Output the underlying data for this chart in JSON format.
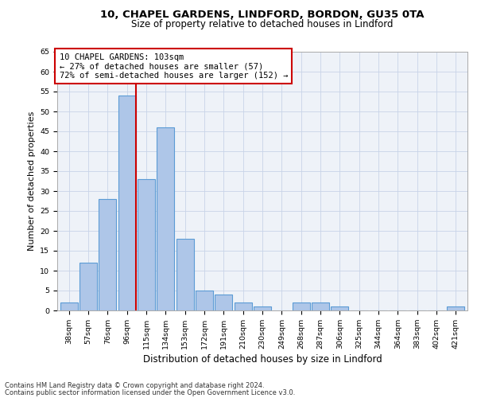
{
  "title_line1": "10, CHAPEL GARDENS, LINDFORD, BORDON, GU35 0TA",
  "title_line2": "Size of property relative to detached houses in Lindford",
  "xlabel": "Distribution of detached houses by size in Lindford",
  "ylabel": "Number of detached properties",
  "bar_labels": [
    "38sqm",
    "57sqm",
    "76sqm",
    "96sqm",
    "115sqm",
    "134sqm",
    "153sqm",
    "172sqm",
    "191sqm",
    "210sqm",
    "230sqm",
    "249sqm",
    "268sqm",
    "287sqm",
    "306sqm",
    "325sqm",
    "344sqm",
    "364sqm",
    "383sqm",
    "402sqm",
    "421sqm"
  ],
  "bar_values": [
    2,
    12,
    28,
    54,
    33,
    46,
    18,
    5,
    4,
    2,
    1,
    0,
    2,
    2,
    1,
    0,
    0,
    0,
    0,
    0,
    1
  ],
  "bar_color": "#aec6e8",
  "bar_edgecolor": "#5b9bd5",
  "bar_linewidth": 0.8,
  "vline_x_index": 3,
  "vline_color": "#cc0000",
  "vline_linewidth": 1.5,
  "ylim": [
    0,
    65
  ],
  "yticks": [
    0,
    5,
    10,
    15,
    20,
    25,
    30,
    35,
    40,
    45,
    50,
    55,
    60,
    65
  ],
  "grid_color": "#c8d4e8",
  "bg_color": "#eef2f8",
  "annotation_text": "10 CHAPEL GARDENS: 103sqm\n← 27% of detached houses are smaller (57)\n72% of semi-detached houses are larger (152) →",
  "annotation_box_edgecolor": "#cc0000",
  "footnote1": "Contains HM Land Registry data © Crown copyright and database right 2024.",
  "footnote2": "Contains public sector information licensed under the Open Government Licence v3.0.",
  "title_fontsize": 9.5,
  "subtitle_fontsize": 8.5,
  "ylabel_fontsize": 8,
  "xlabel_fontsize": 8.5,
  "tick_fontsize": 6.8,
  "annot_fontsize": 7.5,
  "footnote_fontsize": 6
}
